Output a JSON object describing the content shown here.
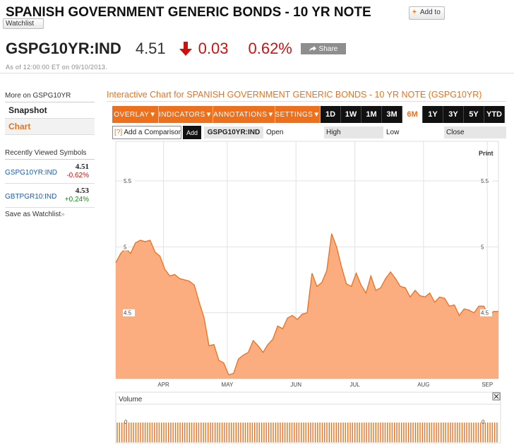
{
  "header": {
    "title": "SPANISH GOVERNMENT GENERIC BONDS - 10 YR NOTE",
    "add_to_label": "Add to",
    "watchlist_label": "Watchlist"
  },
  "quote": {
    "ticker": "GSPG10YR:IND",
    "price": "4.51",
    "change": "0.03",
    "change_pct": "0.62%",
    "direction_icon": "down-arrow-icon",
    "share_label": "Share",
    "as_of": "As of 12:00:00 ET on 09/10/2013.",
    "negative_color": "#cc1111"
  },
  "sidebar": {
    "more_on": "More on GSPG10YR",
    "items": [
      {
        "label": "Snapshot",
        "active": false
      },
      {
        "label": "Chart",
        "active": true
      }
    ],
    "recent_title": "Recently Viewed Symbols",
    "recent": [
      {
        "symbol": "GSPG10YR:IND",
        "value": "4.51",
        "change": "-0.62%"
      },
      {
        "symbol": "GBTPGR10:IND",
        "value": "4.53",
        "change": "+0.24%"
      }
    ],
    "save_watchlist": "Save as Watchlist",
    "save_suffix": "»"
  },
  "chart_panel": {
    "title": "Interactive Chart for SPANISH GOVERNMENT GENERIC BONDS - 10 YR NOTE (GSPG10YR)",
    "menus": [
      "OVERLAY▼",
      "INDICATORS▼",
      "ANNOTATIONS▼",
      "SETTINGS▼"
    ],
    "ranges": [
      "1D",
      "1W",
      "1M",
      "3M",
      "6M",
      "1Y",
      "3Y",
      "5Y",
      "YTD"
    ],
    "selected_range": "6M",
    "compare_prefix": "[?]",
    "compare_placeholder": "Add a Comparison",
    "add_label": "Add",
    "symbol_chip": "GSPG10YR:IND",
    "ohlc": [
      "Open",
      "High",
      "Low",
      "Close"
    ],
    "print_label": "Print",
    "volume_label": "Volume",
    "accent_color": "#ee6f1c",
    "fill_color": "#fbad80"
  },
  "chart_data": {
    "type": "area",
    "x": [
      "Mar 11",
      "Mar 13",
      "Mar 15",
      "Mar 18",
      "Mar 20",
      "Mar 22",
      "Mar 25",
      "Mar 27",
      "Apr 1",
      "Apr 3",
      "Apr 5",
      "Apr 8",
      "Apr 10",
      "Apr 12",
      "Apr 15",
      "Apr 17",
      "Apr 19",
      "Apr 22",
      "Apr 24",
      "Apr 26",
      "Apr 29",
      "May 1",
      "May 3",
      "May 6",
      "May 8",
      "May 10",
      "May 13",
      "May 15",
      "May 17",
      "May 20",
      "May 22",
      "May 24",
      "May 27",
      "May 29",
      "May 31",
      "Jun 3",
      "Jun 5",
      "Jun 7",
      "Jun 10",
      "Jun 12",
      "Jun 14",
      "Jun 17",
      "Jun 19",
      "Jun 21",
      "Jun 24",
      "Jun 26",
      "Jun 28",
      "Jul 1",
      "Jul 3",
      "Jul 5",
      "Jul 8",
      "Jul 10",
      "Jul 12",
      "Jul 15",
      "Jul 17",
      "Jul 19",
      "Jul 22",
      "Jul 24",
      "Jul 26",
      "Jul 29",
      "Jul 31",
      "Aug 2",
      "Aug 5",
      "Aug 7",
      "Aug 9",
      "Aug 12",
      "Aug 14",
      "Aug 16",
      "Aug 19",
      "Aug 21",
      "Aug 23",
      "Aug 26",
      "Aug 28",
      "Aug 30",
      "Sep 2",
      "Sep 4",
      "Sep 6",
      "Sep 9",
      "Sep 10"
    ],
    "values": [
      4.88,
      4.95,
      4.99,
      4.95,
      5.03,
      5.05,
      5.04,
      5.05,
      4.96,
      4.93,
      4.83,
      4.78,
      4.79,
      4.76,
      4.75,
      4.74,
      4.71,
      4.58,
      4.46,
      4.25,
      4.26,
      4.14,
      4.12,
      4.03,
      4.04,
      4.15,
      4.18,
      4.2,
      4.29,
      4.25,
      4.2,
      4.26,
      4.3,
      4.4,
      4.38,
      4.46,
      4.48,
      4.45,
      4.49,
      4.5,
      4.8,
      4.7,
      4.73,
      4.82,
      5.1,
      5.0,
      4.85,
      4.72,
      4.7,
      4.8,
      4.71,
      4.65,
      4.78,
      4.67,
      4.69,
      4.76,
      4.81,
      4.76,
      4.7,
      4.69,
      4.62,
      4.67,
      4.63,
      4.62,
      4.65,
      4.58,
      4.62,
      4.61,
      4.55,
      4.56,
      4.48,
      4.53,
      4.52,
      4.5,
      4.55,
      4.55,
      4.48,
      4.51,
      4.51
    ],
    "xticks": [
      "APR",
      "MAY",
      "JUN",
      "JUL",
      "AUG",
      "SEP"
    ],
    "yticks": [
      4.5,
      5,
      5.5
    ],
    "ytick_labels": [
      "4.5",
      "5",
      "5.5"
    ],
    "ylim": [
      4.0,
      5.8
    ],
    "volume_ticks": [
      "0"
    ],
    "grid": true,
    "legend": "none"
  }
}
